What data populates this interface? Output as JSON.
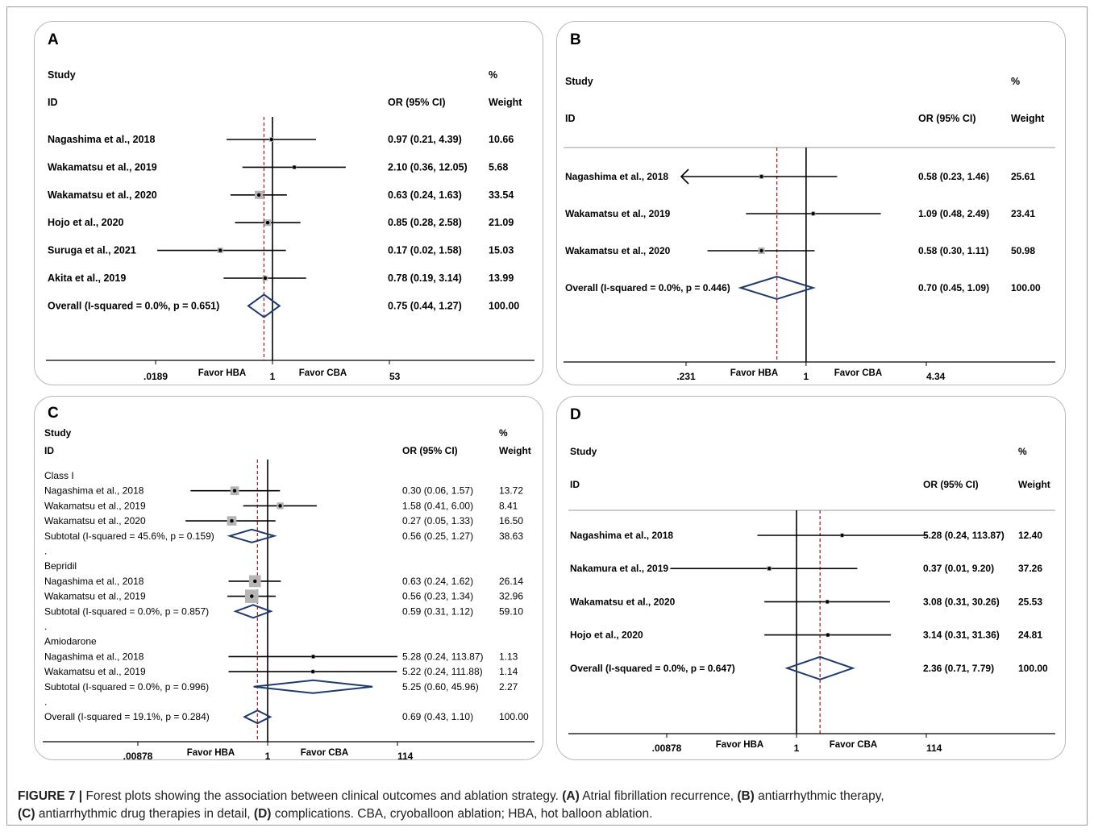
{
  "caption": {
    "label": "FIGURE 7 |",
    "text1": " Forest plots showing the association between clinical outcomes and ablation strategy. ",
    "a_tag": "(A)",
    "a_text": " Atrial fibrillation recurrence, ",
    "b_tag": "(B)",
    "b_text": " antiarrhythmic therapy,",
    "c_tag": "(C)",
    "c_text": " antiarrhythmic drug therapies in detail, ",
    "d_tag": "(D)",
    "d_text": " complications. CBA, cryoballoon ablation; HBA, hot balloon ablation."
  },
  "colors": {
    "line": "#000000",
    "null_line": "#000000",
    "overall_line": "#b22222",
    "diamond": "#1f3a6e",
    "box": "#b5b5b5",
    "panel_border": "#b8b8b8"
  },
  "chart_data": [
    {
      "panel": "A",
      "type": "forest",
      "scale": "log",
      "header": {
        "study": "Study",
        "id": "ID",
        "or": "OR (95% CI)",
        "pct": "%",
        "weight": "Weight"
      },
      "axis": {
        "min": 0.0189,
        "max": 53,
        "ticks": [
          ".0189",
          "1",
          "53"
        ],
        "left_label": "Favor HBA",
        "right_label": "Favor CBA"
      },
      "overall_line": 0.75,
      "rows": [
        {
          "kind": "study",
          "label": "Nagashima et al., 2018",
          "or": 0.97,
          "lo": 0.21,
          "hi": 4.39,
          "weight": 10.66,
          "or_text": "0.97 (0.21, 4.39)",
          "weight_text": "10.66"
        },
        {
          "kind": "study",
          "label": "Wakamatsu et al., 2019",
          "or": 2.1,
          "lo": 0.36,
          "hi": 12.05,
          "weight": 5.68,
          "or_text": "2.10 (0.36, 12.05)",
          "weight_text": "5.68"
        },
        {
          "kind": "study",
          "label": "Wakamatsu et al., 2020",
          "or": 0.63,
          "lo": 0.24,
          "hi": 1.63,
          "weight": 33.54,
          "or_text": "0.63 (0.24, 1.63)",
          "weight_text": "33.54"
        },
        {
          "kind": "study",
          "label": "Hojo et al., 2020",
          "or": 0.85,
          "lo": 0.28,
          "hi": 2.58,
          "weight": 21.09,
          "or_text": "0.85 (0.28, 2.58)",
          "weight_text": "21.09"
        },
        {
          "kind": "study",
          "label": "Suruga et al., 2021",
          "or": 0.17,
          "lo": 0.02,
          "hi": 1.58,
          "weight": 15.03,
          "or_text": "0.17 (0.02, 1.58)",
          "weight_text": "15.03"
        },
        {
          "kind": "study",
          "label": "Akita et al., 2019",
          "or": 0.78,
          "lo": 0.19,
          "hi": 3.14,
          "weight": 13.99,
          "or_text": "0.78 (0.19, 3.14)",
          "weight_text": "13.99"
        },
        {
          "kind": "overall",
          "label": "Overall  (I-squared = 0.0%, p = 0.651)",
          "or": 0.75,
          "lo": 0.44,
          "hi": 1.27,
          "or_text": "0.75 (0.44, 1.27)",
          "weight_text": "100.00"
        }
      ]
    },
    {
      "panel": "B",
      "type": "forest",
      "scale": "log",
      "header": {
        "study": "Study",
        "id": "ID",
        "or": "OR (95% CI)",
        "pct": "%",
        "weight": "Weight"
      },
      "axis": {
        "min": 0.231,
        "max": 4.34,
        "ticks": [
          ".231",
          "1",
          "4.34"
        ],
        "left_label": "Favor HBA",
        "right_label": "Favor CBA"
      },
      "overall_line": 0.7,
      "rows": [
        {
          "kind": "study",
          "label": "Nagashima et al., 2018",
          "or": 0.58,
          "lo": 0.23,
          "hi": 1.46,
          "weight": 25.61,
          "or_text": "0.58 (0.23, 1.46)",
          "weight_text": "25.61"
        },
        {
          "kind": "study",
          "label": "Wakamatsu et al., 2019",
          "or": 1.09,
          "lo": 0.48,
          "hi": 2.49,
          "weight": 23.41,
          "or_text": "1.09 (0.48, 2.49)",
          "weight_text": "23.41"
        },
        {
          "kind": "study",
          "label": "Wakamatsu et al., 2020",
          "or": 0.58,
          "lo": 0.3,
          "hi": 1.11,
          "weight": 50.98,
          "or_text": "0.58 (0.30, 1.11)",
          "weight_text": "50.98"
        },
        {
          "kind": "overall",
          "label": "Overall  (I-squared = 0.0%, p = 0.446)",
          "or": 0.7,
          "lo": 0.45,
          "hi": 1.09,
          "or_text": "0.70 (0.45, 1.09)",
          "weight_text": "100.00"
        }
      ]
    },
    {
      "panel": "C",
      "type": "forest",
      "scale": "log",
      "header": {
        "study": "Study",
        "id": "ID",
        "or": "OR (95% CI)",
        "pct": "%",
        "weight": "Weight"
      },
      "axis": {
        "min": 0.00878,
        "max": 114,
        "ticks": [
          ".00878",
          "1",
          "114"
        ],
        "left_label": "Favor HBA",
        "right_label": "Favor CBA"
      },
      "overall_line": 0.69,
      "rows": [
        {
          "kind": "group",
          "label": "Class I"
        },
        {
          "kind": "study",
          "label": "Nagashima et al., 2018",
          "or": 0.3,
          "lo": 0.06,
          "hi": 1.57,
          "weight": 13.72,
          "or_text": "0.30 (0.06, 1.57)",
          "weight_text": "13.72"
        },
        {
          "kind": "study",
          "label": "Wakamatsu et al., 2019",
          "or": 1.58,
          "lo": 0.41,
          "hi": 6.0,
          "weight": 8.41,
          "or_text": "1.58 (0.41, 6.00)",
          "weight_text": "8.41"
        },
        {
          "kind": "study",
          "label": "Wakamatsu et al., 2020",
          "or": 0.27,
          "lo": 0.05,
          "hi": 1.33,
          "weight": 16.5,
          "or_text": "0.27 (0.05, 1.33)",
          "weight_text": "16.50"
        },
        {
          "kind": "subtotal",
          "label": "Subtotal  (I-squared = 45.6%, p = 0.159)",
          "or": 0.56,
          "lo": 0.25,
          "hi": 1.27,
          "or_text": "0.56 (0.25, 1.27)",
          "weight_text": "38.63"
        },
        {
          "kind": "dot",
          "label": "."
        },
        {
          "kind": "group",
          "label": "Bepridil"
        },
        {
          "kind": "study",
          "label": "Nagashima et al., 2018",
          "or": 0.63,
          "lo": 0.24,
          "hi": 1.62,
          "weight": 26.14,
          "or_text": "0.63 (0.24, 1.62)",
          "weight_text": "26.14"
        },
        {
          "kind": "study",
          "label": "Wakamatsu et al., 2019",
          "or": 0.56,
          "lo": 0.23,
          "hi": 1.34,
          "weight": 32.96,
          "or_text": "0.56 (0.23, 1.34)",
          "weight_text": "32.96"
        },
        {
          "kind": "subtotal",
          "label": "Subtotal  (I-squared = 0.0%, p = 0.857)",
          "or": 0.59,
          "lo": 0.31,
          "hi": 1.12,
          "or_text": "0.59 (0.31, 1.12)",
          "weight_text": "59.10"
        },
        {
          "kind": "dot",
          "label": "."
        },
        {
          "kind": "group",
          "label": "Amiodarone"
        },
        {
          "kind": "study",
          "label": "Nagashima et al., 2018",
          "or": 5.28,
          "lo": 0.24,
          "hi": 113.87,
          "weight": 1.13,
          "or_text": "5.28 (0.24, 113.87)",
          "weight_text": "1.13"
        },
        {
          "kind": "study",
          "label": "Wakamatsu et al., 2019",
          "or": 5.22,
          "lo": 0.24,
          "hi": 111.88,
          "weight": 1.14,
          "or_text": "5.22 (0.24, 111.88)",
          "weight_text": "1.14"
        },
        {
          "kind": "subtotal",
          "label": "Subtotal  (I-squared = 0.0%, p = 0.996)",
          "or": 5.25,
          "lo": 0.6,
          "hi": 45.96,
          "or_text": "5.25 (0.60, 45.96)",
          "weight_text": "2.27"
        },
        {
          "kind": "dot",
          "label": "."
        },
        {
          "kind": "overall",
          "label": "Overall  (I-squared = 19.1%, p = 0.284)",
          "or": 0.69,
          "lo": 0.43,
          "hi": 1.1,
          "or_text": "0.69 (0.43, 1.10)",
          "weight_text": "100.00"
        }
      ]
    },
    {
      "panel": "D",
      "type": "forest",
      "scale": "log",
      "header": {
        "study": "Study",
        "id": "ID",
        "or": "OR (95% CI)",
        "pct": "%",
        "weight": "Weight"
      },
      "axis": {
        "min": 0.00878,
        "max": 114,
        "ticks": [
          ".00878",
          "1",
          "114"
        ],
        "left_label": "Favor HBA",
        "right_label": "Favor CBA"
      },
      "overall_line": 2.36,
      "rows": [
        {
          "kind": "study",
          "label": "Nagashima et al., 2018",
          "or": 5.28,
          "lo": 0.24,
          "hi": 113.87,
          "weight": 12.4,
          "or_text": "5.28 (0.24, 113.87)",
          "weight_text": "12.40"
        },
        {
          "kind": "study",
          "label": "Nakamura et al., 2019",
          "or": 0.37,
          "lo": 0.01,
          "hi": 9.2,
          "weight": 37.26,
          "or_text": "0.37 (0.01, 9.20)",
          "weight_text": "37.26"
        },
        {
          "kind": "study",
          "label": "Wakamatsu et al., 2020",
          "or": 3.08,
          "lo": 0.31,
          "hi": 30.26,
          "weight": 25.53,
          "or_text": "3.08 (0.31, 30.26)",
          "weight_text": "25.53"
        },
        {
          "kind": "study",
          "label": "Hojo et al., 2020",
          "or": 3.14,
          "lo": 0.31,
          "hi": 31.36,
          "weight": 24.81,
          "or_text": "3.14 (0.31, 31.36)",
          "weight_text": "24.81"
        },
        {
          "kind": "overall",
          "label": "Overall  (I-squared = 0.0%, p = 0.647)",
          "or": 2.36,
          "lo": 0.71,
          "hi": 7.79,
          "or_text": "2.36 (0.71, 7.79)",
          "weight_text": "100.00"
        }
      ]
    }
  ]
}
